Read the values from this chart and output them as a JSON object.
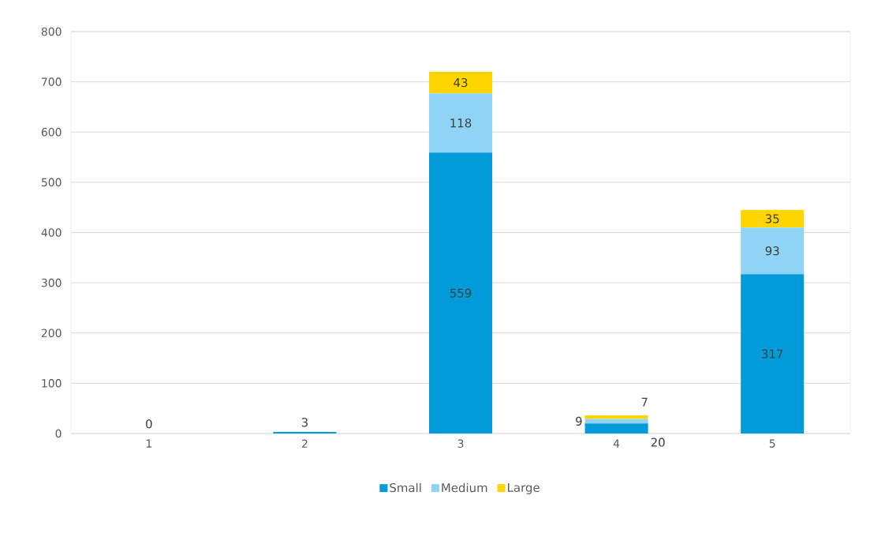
{
  "chart_data": {
    "type": "bar",
    "stacked": true,
    "categories": [
      "1",
      "2",
      "3",
      "4",
      "5"
    ],
    "series": [
      {
        "name": "Small",
        "color": "#009bd8",
        "values": [
          0,
          3,
          559,
          20,
          317
        ]
      },
      {
        "name": "Medium",
        "color": "#8fd3f5",
        "values": [
          null,
          null,
          118,
          9,
          93
        ]
      },
      {
        "name": "Large",
        "color": "#ffd500",
        "values": [
          null,
          null,
          43,
          7,
          35
        ]
      }
    ],
    "ylim": [
      0,
      800
    ],
    "yticks": [
      0,
      100,
      200,
      300,
      400,
      500,
      600,
      700,
      800
    ],
    "grid": "y",
    "legend": "bottom",
    "data_labels": true
  }
}
